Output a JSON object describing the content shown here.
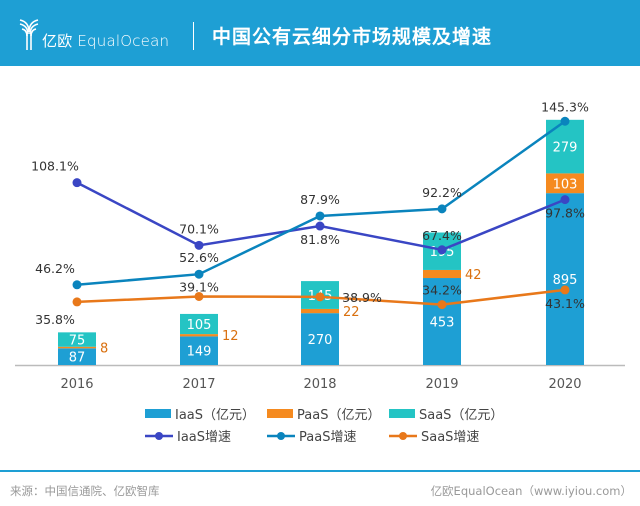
{
  "header": {
    "logo_text": "亿欧 EqualOcean",
    "title": "中国公有云细分市场规模及增速"
  },
  "colors": {
    "header_bg": "#1e9fd4",
    "iaas": "#1e9fd4",
    "paas": "#f58a1f",
    "saas": "#24c4c4",
    "iaas_growth": "#3a46c4",
    "paas_growth": "#0a84bd",
    "saas_growth": "#e8781a"
  },
  "chart_data": {
    "type": "bar+line",
    "categories": [
      "2016",
      "2017",
      "2018",
      "2019",
      "2020"
    ],
    "bar_series": [
      {
        "name": "IaaS（亿元）",
        "values": [
          87,
          149,
          270,
          453,
          895
        ],
        "labels": [
          "87",
          "149",
          "270",
          "453",
          "895"
        ]
      },
      {
        "name": "PaaS（亿元）",
        "values": [
          8,
          12,
          22,
          42,
          103
        ],
        "labels": [
          "8",
          "12",
          "22",
          "42",
          "103"
        ]
      },
      {
        "name": "SaaS（亿元）",
        "values": [
          75,
          105,
          145,
          195,
          279
        ],
        "labels": [
          "75",
          "105",
          "145",
          "195",
          "279"
        ]
      }
    ],
    "line_series": [
      {
        "name": "IaaS增速",
        "values": [
          108.1,
          70.1,
          81.8,
          67.4,
          97.8
        ],
        "labels": [
          "108.1%",
          "70.1%",
          "81.8%",
          "67.4%",
          "97.8%"
        ]
      },
      {
        "name": "PaaS增速",
        "values": [
          46.2,
          52.6,
          87.9,
          92.2,
          145.3
        ],
        "labels": [
          "46.2%",
          "52.6%",
          "87.9%",
          "92.2%",
          "145.3%"
        ]
      },
      {
        "name": "SaaS增速",
        "values": [
          35.8,
          39.1,
          38.9,
          34.2,
          43.1
        ],
        "labels": [
          "35.8%",
          "39.1%",
          "38.9%",
          "34.2%",
          "43.1%"
        ]
      }
    ],
    "stacked": true,
    "grid": false,
    "legend_position": "bottom"
  },
  "footer": {
    "source": "来源：中国信通院、亿欧智库",
    "brand": "亿欧EqualOcean（www.iyiou.com）"
  }
}
